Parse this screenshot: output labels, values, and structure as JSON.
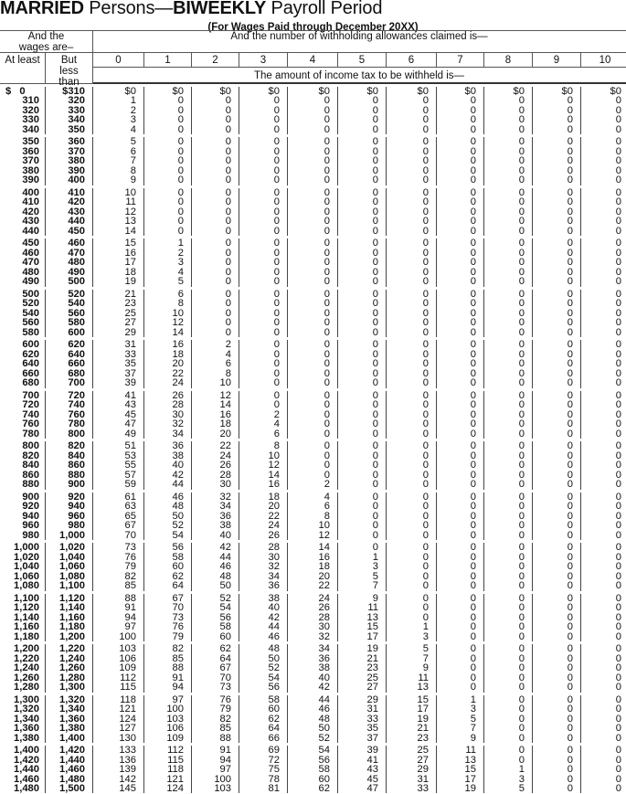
{
  "title": {
    "part1": "MARRIED",
    "part2": " Persons—",
    "part3": "BIWEEKLY",
    "part4": " Payroll Period"
  },
  "subtitle": "(For Wages Paid through December 20XX)",
  "header": {
    "wages_label": "And the wages are–",
    "allowances_label": "And the number of withholding allowances claimed is—",
    "at_least": "At least",
    "but_less_than": "But less than",
    "allowance_columns": [
      "0",
      "1",
      "2",
      "3",
      "4",
      "5",
      "6",
      "7",
      "8",
      "9",
      "10"
    ],
    "amount_label": "The amount of income tax to be withheld is—"
  },
  "rows": [
    [
      "$ 0",
      "$310",
      "$0",
      "$0",
      "$0",
      "$0",
      "$0",
      "$0",
      "$0",
      "$0",
      "$0",
      "$0",
      "$0"
    ],
    [
      "310",
      "320",
      "1",
      "0",
      "0",
      "0",
      "0",
      "0",
      "0",
      "0",
      "0",
      "0",
      "0"
    ],
    [
      "320",
      "330",
      "2",
      "0",
      "0",
      "0",
      "0",
      "0",
      "0",
      "0",
      "0",
      "0",
      "0"
    ],
    [
      "330",
      "340",
      "3",
      "0",
      "0",
      "0",
      "0",
      "0",
      "0",
      "0",
      "0",
      "0",
      "0"
    ],
    [
      "340",
      "350",
      "4",
      "0",
      "0",
      "0",
      "0",
      "0",
      "0",
      "0",
      "0",
      "0",
      "0"
    ],
    [
      "350",
      "360",
      "5",
      "0",
      "0",
      "0",
      "0",
      "0",
      "0",
      "0",
      "0",
      "0",
      "0"
    ],
    [
      "360",
      "370",
      "6",
      "0",
      "0",
      "0",
      "0",
      "0",
      "0",
      "0",
      "0",
      "0",
      "0"
    ],
    [
      "370",
      "380",
      "7",
      "0",
      "0",
      "0",
      "0",
      "0",
      "0",
      "0",
      "0",
      "0",
      "0"
    ],
    [
      "380",
      "390",
      "8",
      "0",
      "0",
      "0",
      "0",
      "0",
      "0",
      "0",
      "0",
      "0",
      "0"
    ],
    [
      "390",
      "400",
      "9",
      "0",
      "0",
      "0",
      "0",
      "0",
      "0",
      "0",
      "0",
      "0",
      "0"
    ],
    [
      "400",
      "410",
      "10",
      "0",
      "0",
      "0",
      "0",
      "0",
      "0",
      "0",
      "0",
      "0",
      "0"
    ],
    [
      "410",
      "420",
      "11",
      "0",
      "0",
      "0",
      "0",
      "0",
      "0",
      "0",
      "0",
      "0",
      "0"
    ],
    [
      "420",
      "430",
      "12",
      "0",
      "0",
      "0",
      "0",
      "0",
      "0",
      "0",
      "0",
      "0",
      "0"
    ],
    [
      "430",
      "440",
      "13",
      "0",
      "0",
      "0",
      "0",
      "0",
      "0",
      "0",
      "0",
      "0",
      "0"
    ],
    [
      "440",
      "450",
      "14",
      "0",
      "0",
      "0",
      "0",
      "0",
      "0",
      "0",
      "0",
      "0",
      "0"
    ],
    [
      "450",
      "460",
      "15",
      "1",
      "0",
      "0",
      "0",
      "0",
      "0",
      "0",
      "0",
      "0",
      "0"
    ],
    [
      "460",
      "470",
      "16",
      "2",
      "0",
      "0",
      "0",
      "0",
      "0",
      "0",
      "0",
      "0",
      "0"
    ],
    [
      "470",
      "480",
      "17",
      "3",
      "0",
      "0",
      "0",
      "0",
      "0",
      "0",
      "0",
      "0",
      "0"
    ],
    [
      "480",
      "490",
      "18",
      "4",
      "0",
      "0",
      "0",
      "0",
      "0",
      "0",
      "0",
      "0",
      "0"
    ],
    [
      "490",
      "500",
      "19",
      "5",
      "0",
      "0",
      "0",
      "0",
      "0",
      "0",
      "0",
      "0",
      "0"
    ],
    [
      "500",
      "520",
      "21",
      "6",
      "0",
      "0",
      "0",
      "0",
      "0",
      "0",
      "0",
      "0",
      "0"
    ],
    [
      "520",
      "540",
      "23",
      "8",
      "0",
      "0",
      "0",
      "0",
      "0",
      "0",
      "0",
      "0",
      "0"
    ],
    [
      "540",
      "560",
      "25",
      "10",
      "0",
      "0",
      "0",
      "0",
      "0",
      "0",
      "0",
      "0",
      "0"
    ],
    [
      "560",
      "580",
      "27",
      "12",
      "0",
      "0",
      "0",
      "0",
      "0",
      "0",
      "0",
      "0",
      "0"
    ],
    [
      "580",
      "600",
      "29",
      "14",
      "0",
      "0",
      "0",
      "0",
      "0",
      "0",
      "0",
      "0",
      "0"
    ],
    [
      "600",
      "620",
      "31",
      "16",
      "2",
      "0",
      "0",
      "0",
      "0",
      "0",
      "0",
      "0",
      "0"
    ],
    [
      "620",
      "640",
      "33",
      "18",
      "4",
      "0",
      "0",
      "0",
      "0",
      "0",
      "0",
      "0",
      "0"
    ],
    [
      "640",
      "660",
      "35",
      "20",
      "6",
      "0",
      "0",
      "0",
      "0",
      "0",
      "0",
      "0",
      "0"
    ],
    [
      "660",
      "680",
      "37",
      "22",
      "8",
      "0",
      "0",
      "0",
      "0",
      "0",
      "0",
      "0",
      "0"
    ],
    [
      "680",
      "700",
      "39",
      "24",
      "10",
      "0",
      "0",
      "0",
      "0",
      "0",
      "0",
      "0",
      "0"
    ],
    [
      "700",
      "720",
      "41",
      "26",
      "12",
      "0",
      "0",
      "0",
      "0",
      "0",
      "0",
      "0",
      "0"
    ],
    [
      "720",
      "740",
      "43",
      "28",
      "14",
      "0",
      "0",
      "0",
      "0",
      "0",
      "0",
      "0",
      "0"
    ],
    [
      "740",
      "760",
      "45",
      "30",
      "16",
      "2",
      "0",
      "0",
      "0",
      "0",
      "0",
      "0",
      "0"
    ],
    [
      "760",
      "780",
      "47",
      "32",
      "18",
      "4",
      "0",
      "0",
      "0",
      "0",
      "0",
      "0",
      "0"
    ],
    [
      "780",
      "800",
      "49",
      "34",
      "20",
      "6",
      "0",
      "0",
      "0",
      "0",
      "0",
      "0",
      "0"
    ],
    [
      "800",
      "820",
      "51",
      "36",
      "22",
      "8",
      "0",
      "0",
      "0",
      "0",
      "0",
      "0",
      "0"
    ],
    [
      "820",
      "840",
      "53",
      "38",
      "24",
      "10",
      "0",
      "0",
      "0",
      "0",
      "0",
      "0",
      "0"
    ],
    [
      "840",
      "860",
      "55",
      "40",
      "26",
      "12",
      "0",
      "0",
      "0",
      "0",
      "0",
      "0",
      "0"
    ],
    [
      "860",
      "880",
      "57",
      "42",
      "28",
      "14",
      "0",
      "0",
      "0",
      "0",
      "0",
      "0",
      "0"
    ],
    [
      "880",
      "900",
      "59",
      "44",
      "30",
      "16",
      "2",
      "0",
      "0",
      "0",
      "0",
      "0",
      "0"
    ],
    [
      "900",
      "920",
      "61",
      "46",
      "32",
      "18",
      "4",
      "0",
      "0",
      "0",
      "0",
      "0",
      "0"
    ],
    [
      "920",
      "940",
      "63",
      "48",
      "34",
      "20",
      "6",
      "0",
      "0",
      "0",
      "0",
      "0",
      "0"
    ],
    [
      "940",
      "960",
      "65",
      "50",
      "36",
      "22",
      "8",
      "0",
      "0",
      "0",
      "0",
      "0",
      "0"
    ],
    [
      "960",
      "980",
      "67",
      "52",
      "38",
      "24",
      "10",
      "0",
      "0",
      "0",
      "0",
      "0",
      "0"
    ],
    [
      "980",
      "1,000",
      "70",
      "54",
      "40",
      "26",
      "12",
      "0",
      "0",
      "0",
      "0",
      "0",
      "0"
    ],
    [
      "1,000",
      "1,020",
      "73",
      "56",
      "42",
      "28",
      "14",
      "0",
      "0",
      "0",
      "0",
      "0",
      "0"
    ],
    [
      "1,020",
      "1,040",
      "76",
      "58",
      "44",
      "30",
      "16",
      "1",
      "0",
      "0",
      "0",
      "0",
      "0"
    ],
    [
      "1,040",
      "1,060",
      "79",
      "60",
      "46",
      "32",
      "18",
      "3",
      "0",
      "0",
      "0",
      "0",
      "0"
    ],
    [
      "1,060",
      "1,080",
      "82",
      "62",
      "48",
      "34",
      "20",
      "5",
      "0",
      "0",
      "0",
      "0",
      "0"
    ],
    [
      "1,080",
      "1,100",
      "85",
      "64",
      "50",
      "36",
      "22",
      "7",
      "0",
      "0",
      "0",
      "0",
      "0"
    ],
    [
      "1,100",
      "1,120",
      "88",
      "67",
      "52",
      "38",
      "24",
      "9",
      "0",
      "0",
      "0",
      "0",
      "0"
    ],
    [
      "1,120",
      "1,140",
      "91",
      "70",
      "54",
      "40",
      "26",
      "11",
      "0",
      "0",
      "0",
      "0",
      "0"
    ],
    [
      "1,140",
      "1,160",
      "94",
      "73",
      "56",
      "42",
      "28",
      "13",
      "0",
      "0",
      "0",
      "0",
      "0"
    ],
    [
      "1,160",
      "1,180",
      "97",
      "76",
      "58",
      "44",
      "30",
      "15",
      "1",
      "0",
      "0",
      "0",
      "0"
    ],
    [
      "1,180",
      "1,200",
      "100",
      "79",
      "60",
      "46",
      "32",
      "17",
      "3",
      "0",
      "0",
      "0",
      "0"
    ],
    [
      "1,200",
      "1,220",
      "103",
      "82",
      "62",
      "48",
      "34",
      "19",
      "5",
      "0",
      "0",
      "0",
      "0"
    ],
    [
      "1,220",
      "1,240",
      "106",
      "85",
      "64",
      "50",
      "36",
      "21",
      "7",
      "0",
      "0",
      "0",
      "0"
    ],
    [
      "1,240",
      "1,260",
      "109",
      "88",
      "67",
      "52",
      "38",
      "23",
      "9",
      "0",
      "0",
      "0",
      "0"
    ],
    [
      "1,260",
      "1,280",
      "112",
      "91",
      "70",
      "54",
      "40",
      "25",
      "11",
      "0",
      "0",
      "0",
      "0"
    ],
    [
      "1,280",
      "1,300",
      "115",
      "94",
      "73",
      "56",
      "42",
      "27",
      "13",
      "0",
      "0",
      "0",
      "0"
    ],
    [
      "1,300",
      "1,320",
      "118",
      "97",
      "76",
      "58",
      "44",
      "29",
      "15",
      "1",
      "0",
      "0",
      "0"
    ],
    [
      "1,320",
      "1,340",
      "121",
      "100",
      "79",
      "60",
      "46",
      "31",
      "17",
      "3",
      "0",
      "0",
      "0"
    ],
    [
      "1,340",
      "1,360",
      "124",
      "103",
      "82",
      "62",
      "48",
      "33",
      "19",
      "5",
      "0",
      "0",
      "0"
    ],
    [
      "1,360",
      "1,380",
      "127",
      "106",
      "85",
      "64",
      "50",
      "35",
      "21",
      "7",
      "0",
      "0",
      "0"
    ],
    [
      "1,380",
      "1,400",
      "130",
      "109",
      "88",
      "66",
      "52",
      "37",
      "23",
      "9",
      "0",
      "0",
      "0"
    ],
    [
      "1,400",
      "1,420",
      "133",
      "112",
      "91",
      "69",
      "54",
      "39",
      "25",
      "11",
      "0",
      "0",
      "0"
    ],
    [
      "1,420",
      "1,440",
      "136",
      "115",
      "94",
      "72",
      "56",
      "41",
      "27",
      "13",
      "0",
      "0",
      "0"
    ],
    [
      "1,440",
      "1,460",
      "139",
      "118",
      "97",
      "75",
      "58",
      "43",
      "29",
      "15",
      "1",
      "0",
      "0"
    ],
    [
      "1,460",
      "1,480",
      "142",
      "121",
      "100",
      "78",
      "60",
      "45",
      "31",
      "17",
      "3",
      "0",
      "0"
    ],
    [
      "1,480",
      "1,500",
      "145",
      "124",
      "103",
      "81",
      "62",
      "47",
      "33",
      "19",
      "5",
      "0",
      "0"
    ]
  ]
}
